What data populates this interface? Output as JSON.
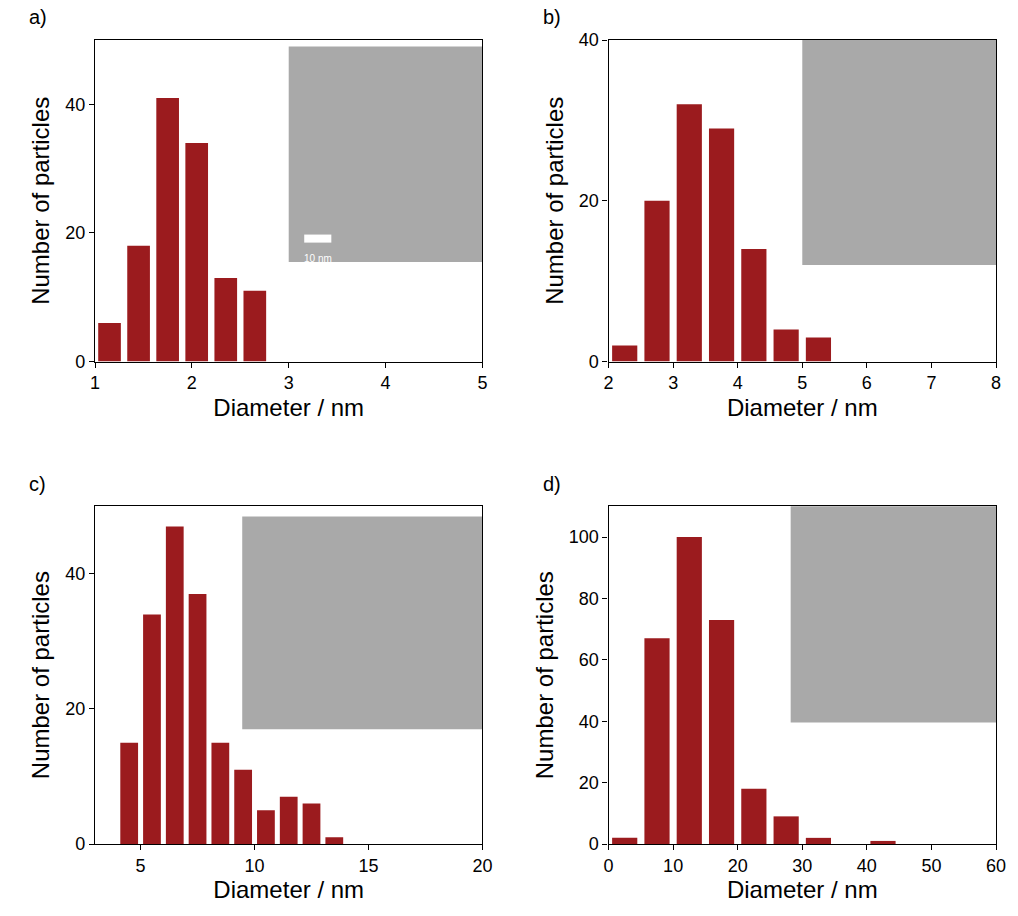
{
  "chart_data": [
    {
      "type": "histogram",
      "title": "a)",
      "xlabel": "Diameter / nm",
      "ylabel": "Number of particles",
      "bins": [
        1.0,
        1.3,
        1.6,
        1.9,
        2.2,
        2.5,
        2.8
      ],
      "counts": [
        6,
        18,
        41,
        34,
        13,
        11
      ],
      "color": "#9b1b1e",
      "xlim": [
        1,
        5
      ],
      "xticks": [
        1,
        2,
        3,
        4,
        5
      ],
      "ylim": [
        0,
        50
      ],
      "yticks": [
        0,
        20,
        40
      ],
      "annotations": [
        "10 nm"
      ]
    },
    {
      "type": "histogram",
      "title": "b)",
      "xlabel": "Diameter / nm",
      "ylabel": "Number of particles",
      "bins": [
        2.0,
        2.5,
        3.0,
        3.5,
        4.0,
        4.5,
        5.0,
        5.5
      ],
      "counts": [
        2,
        20,
        32,
        29,
        14,
        4,
        3
      ],
      "color": "#9b1b1e",
      "xlim": [
        2,
        8
      ],
      "xticks": [
        2,
        3,
        4,
        5,
        6,
        7,
        8
      ],
      "ylim": [
        0,
        40
      ],
      "yticks": [
        0,
        20,
        40
      ]
    },
    {
      "type": "histogram",
      "title": "c)",
      "xlabel": "Diameter / nm",
      "ylabel": "Number of particles",
      "bins": [
        4,
        5,
        6,
        7,
        8,
        9,
        10,
        11,
        12,
        13,
        14
      ],
      "counts": [
        15,
        34,
        47,
        37,
        15,
        11,
        5,
        7,
        6,
        1
      ],
      "color": "#9b1b1e",
      "xlim": [
        3,
        20
      ],
      "xticks": [
        5,
        10,
        15,
        20
      ],
      "ylim": [
        0,
        50
      ],
      "yticks": [
        0,
        20,
        40
      ]
    },
    {
      "type": "histogram",
      "title": "d)",
      "xlabel": "Diameter / nm",
      "ylabel": "Number of particles",
      "bins": [
        0,
        5,
        10,
        15,
        20,
        25,
        30,
        35,
        40,
        45
      ],
      "counts": [
        2,
        67,
        100,
        73,
        18,
        9,
        2,
        0,
        1
      ],
      "color": "#9b1b1e",
      "xlim": [
        0,
        60
      ],
      "xticks": [
        0,
        10,
        20,
        30,
        40,
        50,
        60
      ],
      "ylim": [
        0,
        110
      ],
      "yticks": [
        0,
        20,
        40,
        60,
        80,
        100
      ]
    }
  ]
}
